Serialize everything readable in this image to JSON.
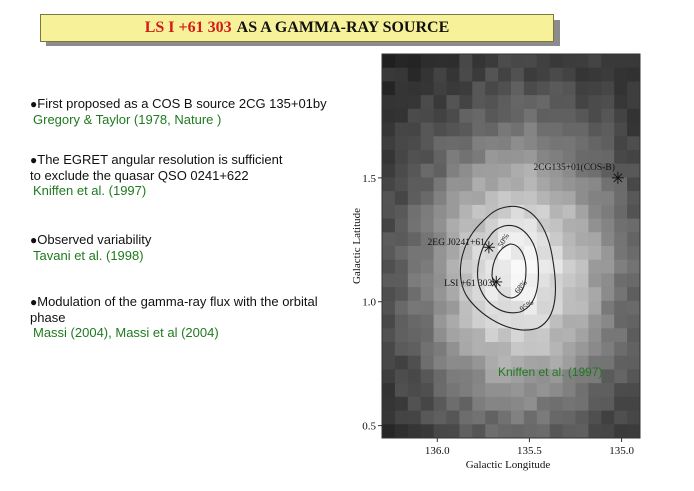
{
  "title": {
    "highlight": "LS I +61 303",
    "rest": "AS A GAMMA-RAY SOURCE"
  },
  "bullets": [
    {
      "lines": [
        "First proposed as a COS B source  2CG 135+01by"
      ],
      "ref": "Gregory & Taylor (1978, Nature )"
    },
    {
      "lines": [
        "The EGRET angular resolution is sufficient",
        " to exclude the quasar   QSO 0241+622"
      ],
      "ref": "Kniffen et al. (1997)"
    },
    {
      "lines": [
        "Observed  variability"
      ],
      "ref": "Tavani  et al. (1998)"
    },
    {
      "lines": [
        "Modulation of the gamma-ray flux with the orbital",
        "phase"
      ],
      "ref": "Massi (2004),  Massi et al (2004)"
    }
  ],
  "chart_data": {
    "type": "heatmap",
    "xlabel": "Galactic Longitude",
    "ylabel": "Galactic Latitude",
    "x_ticks": [
      "136.0",
      "135.5",
      "135.0"
    ],
    "x_tick_values": [
      136.0,
      135.5,
      135.0
    ],
    "y_ticks": [
      "1.5",
      "1.0",
      "0.5"
    ],
    "y_tick_values": [
      1.5,
      1.0,
      0.5
    ],
    "xlim": [
      136.3,
      134.9
    ],
    "ylim": [
      0.45,
      2.0
    ],
    "x_reversed": true,
    "contour_labels": [
      "50%",
      "68%",
      "95%"
    ],
    "sources": [
      {
        "label": "2CG135+01(COS-B)",
        "l": 135.02,
        "b": 1.5
      },
      {
        "label": "2EG J0241+61",
        "l": 135.72,
        "b": 1.22
      },
      {
        "label": "LSI +61 303",
        "l": 135.68,
        "b": 1.08
      }
    ],
    "annotation": "Kniffen et al. (1997)",
    "annotation_color": "#1f7a1f",
    "colormap": "grayscale"
  }
}
